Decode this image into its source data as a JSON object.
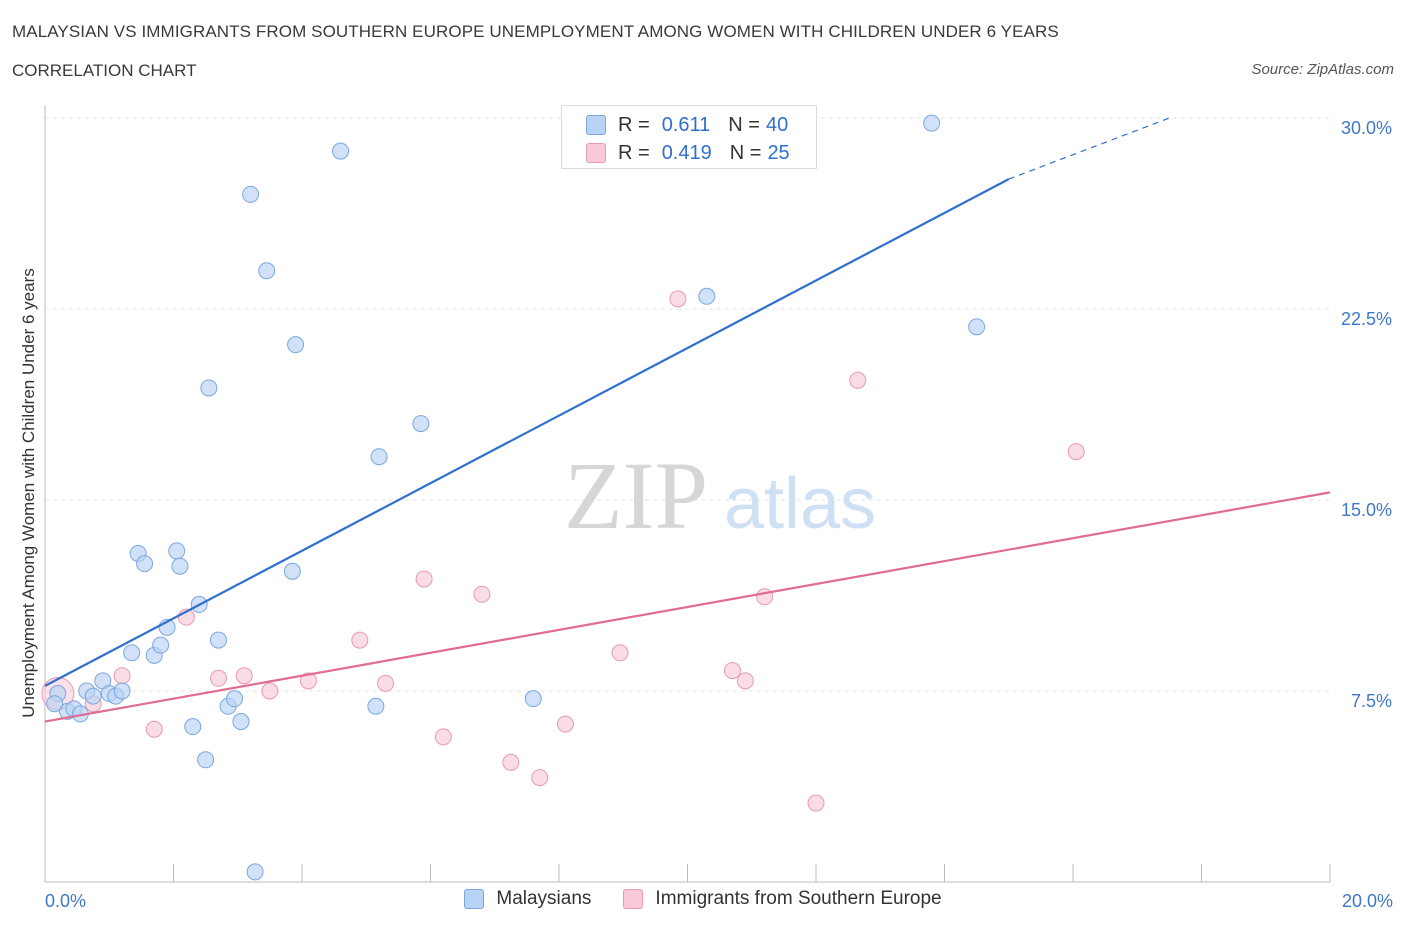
{
  "header": {
    "title": "MALAYSIAN VS IMMIGRANTS FROM SOUTHERN EUROPE UNEMPLOYMENT AMONG WOMEN WITH CHILDREN UNDER 6 YEARS",
    "subtitle": "CORRELATION CHART",
    "source": "Source: ZipAtlas.com"
  },
  "watermark": {
    "zip": "ZIP",
    "atlas": "atlas"
  },
  "legend": {
    "r_label": "R =",
    "n_label": "N =",
    "rows": [
      {
        "r": "0.611",
        "n": "40"
      },
      {
        "r": "0.419",
        "n": "25"
      }
    ]
  },
  "colors": {
    "blue_fill": "#b9d3f4",
    "blue_stroke": "#7aa6e0",
    "blue_line": "#2f6fce",
    "pink_fill": "#f8c9d7",
    "pink_stroke": "#e89ab2",
    "pink_line": "#e06b93",
    "tick_label": "#3f78c9",
    "grid": "#e3e3e3"
  },
  "chart_data": {
    "type": "scatter",
    "title": "MALAYSIAN VS IMMIGRANTS FROM SOUTHERN EUROPE UNEMPLOYMENT AMONG WOMEN WITH CHILDREN UNDER 6 YEARS",
    "ylabel": "Unemployment Among Women with Children Under 6 years",
    "xlabel": "",
    "xlim": [
      0,
      20
    ],
    "ylim": [
      0,
      30
    ],
    "x_tick_labels": [
      "0.0%",
      "20.0%"
    ],
    "y_ticks": [
      7.5,
      15.0,
      22.5,
      30.0
    ],
    "y_tick_labels": [
      "7.5%",
      "15.0%",
      "22.5%",
      "30.0%"
    ],
    "grid": true,
    "legend_position": "top-center and bottom",
    "series": [
      {
        "name": "Malaysians",
        "color": "#7aa6e0",
        "points": [
          [
            0.2,
            7.4
          ],
          [
            0.35,
            6.7
          ],
          [
            0.45,
            6.8
          ],
          [
            0.55,
            6.6
          ],
          [
            0.65,
            7.5
          ],
          [
            0.75,
            7.3
          ],
          [
            0.9,
            7.9
          ],
          [
            1.0,
            7.4
          ],
          [
            1.1,
            7.3
          ],
          [
            1.2,
            7.5
          ],
          [
            1.35,
            9.0
          ],
          [
            1.45,
            12.9
          ],
          [
            1.55,
            12.5
          ],
          [
            1.7,
            8.9
          ],
          [
            1.8,
            9.3
          ],
          [
            1.9,
            10.0
          ],
          [
            2.05,
            13.0
          ],
          [
            2.1,
            12.4
          ],
          [
            2.3,
            6.1
          ],
          [
            2.4,
            10.9
          ],
          [
            2.5,
            4.8
          ],
          [
            2.55,
            19.4
          ],
          [
            2.7,
            9.5
          ],
          [
            2.85,
            6.9
          ],
          [
            2.95,
            7.2
          ],
          [
            3.05,
            6.3
          ],
          [
            3.2,
            27.0
          ],
          [
            3.27,
            0.4
          ],
          [
            3.45,
            24.0
          ],
          [
            3.85,
            12.2
          ],
          [
            3.9,
            21.1
          ],
          [
            4.6,
            28.7
          ],
          [
            5.15,
            6.9
          ],
          [
            5.2,
            16.7
          ],
          [
            5.85,
            18.0
          ],
          [
            7.6,
            7.2
          ],
          [
            10.3,
            23.0
          ],
          [
            13.8,
            29.8
          ],
          [
            14.5,
            21.8
          ],
          [
            0.15,
            7.0
          ]
        ]
      },
      {
        "name": "Immigrants from Southern Europe",
        "color": "#e89ab2",
        "points": [
          [
            0.2,
            7.4
          ],
          [
            0.75,
            7.0
          ],
          [
            1.2,
            8.1
          ],
          [
            1.7,
            6.0
          ],
          [
            2.2,
            10.4
          ],
          [
            2.7,
            8.0
          ],
          [
            3.1,
            8.1
          ],
          [
            3.5,
            7.5
          ],
          [
            4.1,
            7.9
          ],
          [
            4.9,
            9.5
          ],
          [
            5.3,
            7.8
          ],
          [
            5.9,
            11.9
          ],
          [
            6.2,
            5.7
          ],
          [
            6.8,
            11.3
          ],
          [
            7.25,
            4.7
          ],
          [
            7.7,
            4.1
          ],
          [
            8.1,
            6.2
          ],
          [
            8.95,
            9.0
          ],
          [
            9.85,
            22.9
          ],
          [
            10.7,
            8.3
          ],
          [
            10.9,
            7.9
          ],
          [
            11.2,
            11.2
          ],
          [
            12.0,
            3.1
          ],
          [
            12.65,
            19.7
          ],
          [
            16.05,
            16.9
          ]
        ]
      }
    ],
    "trendlines": [
      {
        "series": "Malaysians",
        "x0": 0,
        "y0": 7.7,
        "x1": 15.0,
        "y1": 27.6,
        "dashed_to_x": 17.5,
        "dashed_to_y": 30.0
      },
      {
        "series": "Immigrants from Southern Europe",
        "x0": 0,
        "y0": 6.3,
        "x1": 20.0,
        "y1": 15.3
      }
    ]
  },
  "bottom_legend": [
    {
      "label": "Malaysians"
    },
    {
      "label": "Immigrants from Southern Europe"
    }
  ]
}
